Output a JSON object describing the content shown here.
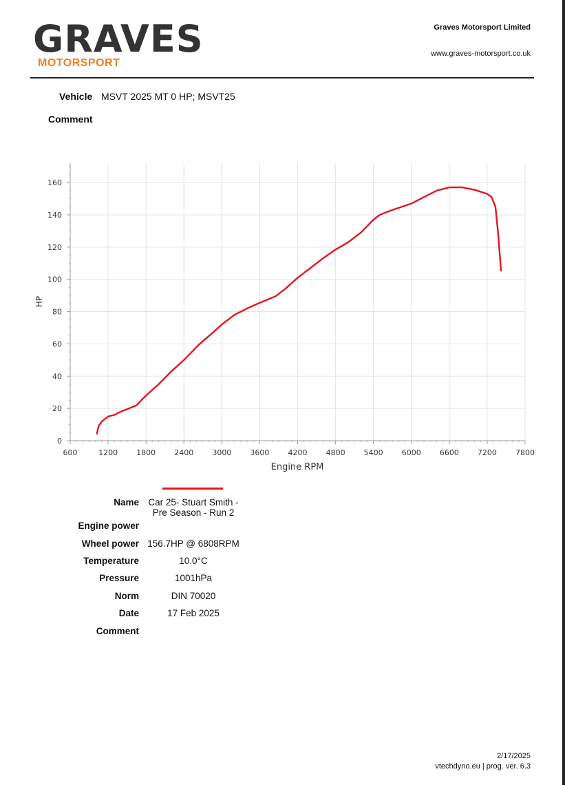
{
  "header": {
    "logo_main": "GRAVES",
    "logo_sub": "MOTORSPORT",
    "company": "Graves Motorsport Limited",
    "url": "www.graves-motorsport.co.uk"
  },
  "vehicle": {
    "label": "Vehicle",
    "value": "MSVT 2025 MT 0 HP; MSVT25",
    "comment_label": "Comment"
  },
  "chart_data": {
    "type": "line",
    "title": "",
    "xlabel": "Engine RPM",
    "ylabel": "HP",
    "xlim": [
      600,
      7800
    ],
    "ylim": [
      0,
      172
    ],
    "xticks": [
      600,
      1200,
      1800,
      2400,
      3000,
      3600,
      4200,
      4800,
      5400,
      6000,
      6600,
      7200,
      7800
    ],
    "yticks": [
      0,
      20,
      40,
      60,
      80,
      100,
      120,
      140,
      160
    ],
    "grid": true,
    "series": [
      {
        "name": "Car 25- Stuart Smith - Pre Season - Run 2",
        "color": "#e8141b",
        "x": [
          1020,
          1050,
          1100,
          1200,
          1300,
          1400,
          1500,
          1650,
          1800,
          2000,
          2200,
          2400,
          2550,
          2650,
          2800,
          3000,
          3200,
          3400,
          3600,
          3850,
          4000,
          4200,
          4400,
          4600,
          4800,
          5000,
          5200,
          5400,
          5500,
          5700,
          6000,
          6200,
          6400,
          6600,
          6800,
          7000,
          7200,
          7270,
          7330,
          7370,
          7420
        ],
        "y": [
          4,
          9,
          12,
          15,
          16,
          18,
          19.5,
          22,
          28,
          35,
          43,
          50,
          56,
          60,
          65,
          72,
          78,
          82,
          85.5,
          89.5,
          94,
          101,
          107,
          113,
          118.5,
          123,
          129,
          137,
          140,
          143,
          147,
          151,
          155,
          157,
          157,
          155.5,
          153,
          151,
          145,
          130,
          105
        ]
      }
    ]
  },
  "results": {
    "rows": [
      {
        "label": "Name",
        "value": "Car 25- Stuart Smith - Pre Season - Run 2"
      },
      {
        "label": "Engine power",
        "value": ""
      },
      {
        "label": "Wheel power",
        "value": "156.7HP @ 6808RPM"
      },
      {
        "label": "Temperature",
        "value": "10.0°C"
      },
      {
        "label": "Pressure",
        "value": "1001hPa"
      },
      {
        "label": "Norm",
        "value": "DIN 70020"
      },
      {
        "label": "Date",
        "value": "17 Feb 2025"
      },
      {
        "label": "Comment",
        "value": ""
      }
    ]
  },
  "footer": {
    "date": "2/17/2025",
    "program": "vtechdyno.eu | prog. ver. 6.3"
  }
}
